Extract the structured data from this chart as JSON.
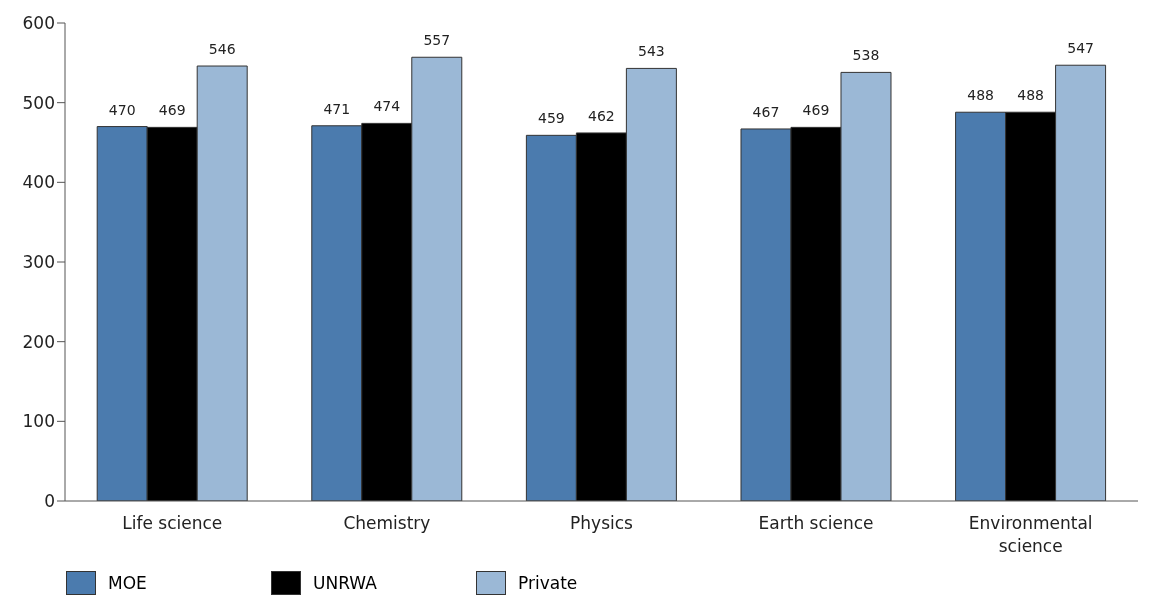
{
  "chart_data": {
    "type": "bar",
    "categories": [
      "Life science",
      "Chemistry",
      "Physics",
      "Earth science",
      "Environmental science"
    ],
    "series": [
      {
        "name": "MOE",
        "color": "#4b7bae",
        "values": [
          470,
          471,
          459,
          467,
          488
        ]
      },
      {
        "name": "UNRWA",
        "color": "#000000",
        "values": [
          469,
          474,
          462,
          469,
          488
        ]
      },
      {
        "name": "Private",
        "color": "#9bb8d6",
        "values": [
          546,
          557,
          543,
          538,
          547
        ]
      }
    ],
    "ylim": [
      0,
      600
    ],
    "yticks": [
      0,
      100,
      200,
      300,
      400,
      500,
      600
    ],
    "grid": false,
    "legend": "bottom",
    "data_labels": true
  }
}
